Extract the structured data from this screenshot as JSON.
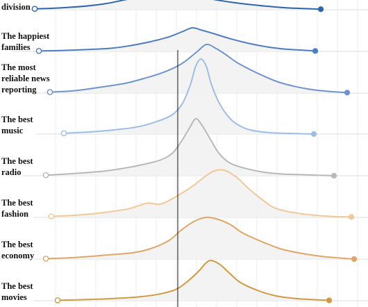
{
  "chart_data": {
    "type": "ridgeline",
    "title": "",
    "xlabel": "",
    "ylabel": "",
    "grid": true,
    "reference_line": true,
    "series": [
      {
        "name": "division",
        "color": "#2e64b2",
        "start_marker": "open",
        "end_marker": "filled",
        "x": [
          0,
          0.06,
          0.12,
          0.18,
          0.24,
          0.3,
          0.36,
          0.42,
          0.48,
          0.52,
          0.56,
          0.6,
          0.66,
          0.72,
          0.78,
          0.84,
          0.9,
          0.95
        ],
        "values": [
          0.05,
          0.08,
          0.14,
          0.22,
          0.35,
          0.55,
          0.75,
          0.9,
          1.0,
          0.88,
          0.7,
          0.55,
          0.4,
          0.28,
          0.18,
          0.1,
          0.06,
          0.03
        ]
      },
      {
        "name": "The happiest\nfamilies",
        "color": "#4c7cc4",
        "start_marker": "open",
        "end_marker": "filled",
        "x": [
          0,
          0.08,
          0.16,
          0.24,
          0.3,
          0.36,
          0.42,
          0.47,
          0.5,
          0.53,
          0.57,
          0.62,
          0.68,
          0.74,
          0.8,
          0.86,
          0.9
        ],
        "values": [
          0.02,
          0.04,
          0.08,
          0.14,
          0.25,
          0.4,
          0.6,
          0.85,
          1.0,
          0.9,
          0.75,
          0.55,
          0.35,
          0.2,
          0.1,
          0.05,
          0.02
        ]
      },
      {
        "name": "The most\nreliable news\nreporting",
        "color": "#6f93d0",
        "start_marker": "open",
        "end_marker": "filled",
        "x": [
          0,
          0.08,
          0.16,
          0.24,
          0.3,
          0.36,
          0.42,
          0.47,
          0.5,
          0.53,
          0.56,
          0.6,
          0.66,
          0.72,
          0.78,
          0.84,
          0.9,
          0.95
        ],
        "values": [
          0.02,
          0.05,
          0.12,
          0.2,
          0.3,
          0.42,
          0.6,
          0.85,
          1.0,
          0.92,
          0.8,
          0.62,
          0.42,
          0.25,
          0.14,
          0.07,
          0.03,
          0.01
        ]
      },
      {
        "name": "The best\nmusic",
        "color": "#9cbde6",
        "start_marker": "open",
        "end_marker": "filled",
        "x": [
          0,
          0.1,
          0.2,
          0.28,
          0.34,
          0.4,
          0.44,
          0.47,
          0.49,
          0.51,
          0.53,
          0.55,
          0.58,
          0.62,
          0.66,
          0.7,
          0.76,
          0.82,
          0.88,
          0.93
        ],
        "values": [
          0.01,
          0.03,
          0.06,
          0.1,
          0.16,
          0.25,
          0.4,
          0.65,
          0.9,
          1.0,
          0.9,
          0.65,
          0.4,
          0.2,
          0.1,
          0.05,
          0.02,
          0.01,
          0.005,
          0.0
        ]
      },
      {
        "name": "The best\nradio",
        "color": "#b8b8b8",
        "start_marker": "open",
        "end_marker": "filled",
        "x": [
          0,
          0.1,
          0.2,
          0.28,
          0.34,
          0.4,
          0.44,
          0.47,
          0.5,
          0.52,
          0.54,
          0.57,
          0.6,
          0.64,
          0.7,
          0.76,
          0.82,
          0.88,
          0.94,
          1.0
        ],
        "values": [
          0.01,
          0.04,
          0.08,
          0.14,
          0.2,
          0.28,
          0.4,
          0.6,
          0.85,
          1.0,
          0.9,
          0.65,
          0.4,
          0.22,
          0.12,
          0.06,
          0.03,
          0.02,
          0.01,
          0.0
        ]
      },
      {
        "name": "The best\nfashion",
        "color": "#f0c896",
        "start_marker": "open",
        "end_marker": "filled",
        "x": [
          0,
          0.08,
          0.16,
          0.24,
          0.3,
          0.34,
          0.38,
          0.44,
          0.5,
          0.54,
          0.58,
          0.62,
          0.66,
          0.7,
          0.76,
          0.82,
          0.88,
          0.94
        ],
        "values": [
          0.02,
          0.05,
          0.1,
          0.18,
          0.3,
          0.28,
          0.4,
          0.65,
          0.95,
          1.0,
          0.85,
          0.6,
          0.38,
          0.2,
          0.1,
          0.05,
          0.02,
          0.01
        ]
      },
      {
        "name": "The best\neconomy",
        "color": "#e0a666",
        "start_marker": "open",
        "end_marker": "filled",
        "x": [
          0,
          0.1,
          0.2,
          0.28,
          0.34,
          0.4,
          0.44,
          0.48,
          0.52,
          0.56,
          0.6,
          0.64,
          0.7,
          0.76,
          0.82,
          0.9,
          1.0
        ],
        "values": [
          0.01,
          0.04,
          0.1,
          0.15,
          0.25,
          0.45,
          0.7,
          0.9,
          1.0,
          0.95,
          0.82,
          0.62,
          0.42,
          0.25,
          0.15,
          0.06,
          0.0
        ]
      },
      {
        "name": "The best\nmovies",
        "color": "#d09a40",
        "start_marker": "open",
        "end_marker": "filled",
        "x": [
          0,
          0.1,
          0.2,
          0.28,
          0.34,
          0.4,
          0.44,
          0.48,
          0.5,
          0.52,
          0.55,
          0.58,
          0.62,
          0.68,
          0.74,
          0.8,
          0.86,
          0.92
        ],
        "values": [
          0.01,
          0.03,
          0.06,
          0.1,
          0.16,
          0.28,
          0.48,
          0.75,
          0.92,
          1.0,
          0.9,
          0.7,
          0.45,
          0.25,
          0.12,
          0.06,
          0.03,
          0.01
        ]
      }
    ]
  }
}
